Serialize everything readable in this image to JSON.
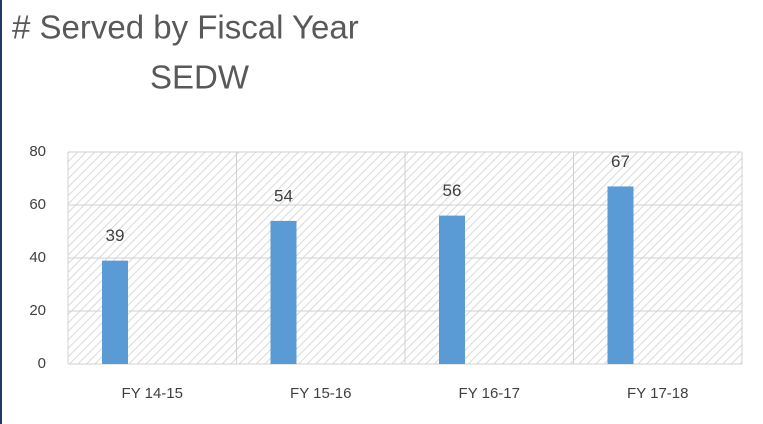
{
  "chart_data": {
    "type": "bar",
    "title": "# Served by Fiscal Year",
    "subtitle": "SEDW",
    "categories": [
      "FY 14-15",
      "FY 15-16",
      "FY 16-17",
      "FY 17-18"
    ],
    "values": [
      39,
      54,
      56,
      67
    ],
    "color": "#5b9bd5",
    "ylim": [
      0,
      80
    ],
    "yticks": [
      0,
      20,
      40,
      60,
      80
    ],
    "grid": true
  }
}
